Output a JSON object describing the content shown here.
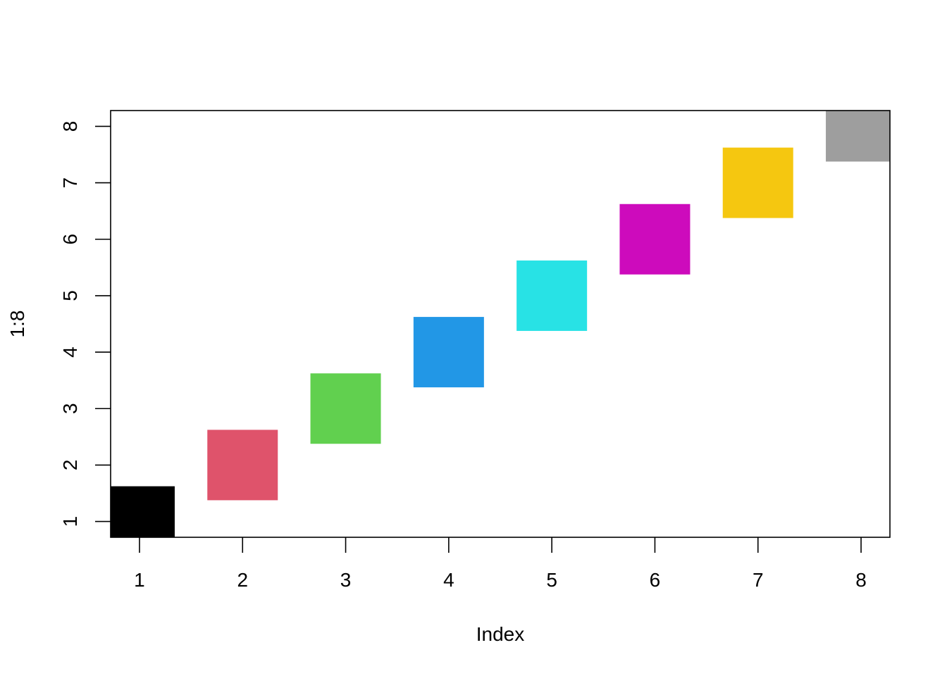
{
  "chart_data": {
    "type": "scatter",
    "title": "",
    "xlabel": "Index",
    "ylabel": "1:8",
    "x": [
      1,
      2,
      3,
      4,
      5,
      6,
      7,
      8
    ],
    "y": [
      1,
      2,
      3,
      4,
      5,
      6,
      7,
      8
    ],
    "marker": "filled-square",
    "point_colors": [
      "#000000",
      "#DF536B",
      "#61D04F",
      "#2297E6",
      "#28E2E5",
      "#CD0BBC",
      "#F5C710",
      "#9E9E9E"
    ],
    "xticks": [
      "1",
      "2",
      "3",
      "4",
      "5",
      "6",
      "7",
      "8"
    ],
    "yticks": [
      "1",
      "2",
      "3",
      "4",
      "5",
      "6",
      "7",
      "8"
    ],
    "xlim": [
      0.72,
      8.28
    ],
    "ylim": [
      0.72,
      8.28
    ],
    "grid": false,
    "legend": "none"
  }
}
